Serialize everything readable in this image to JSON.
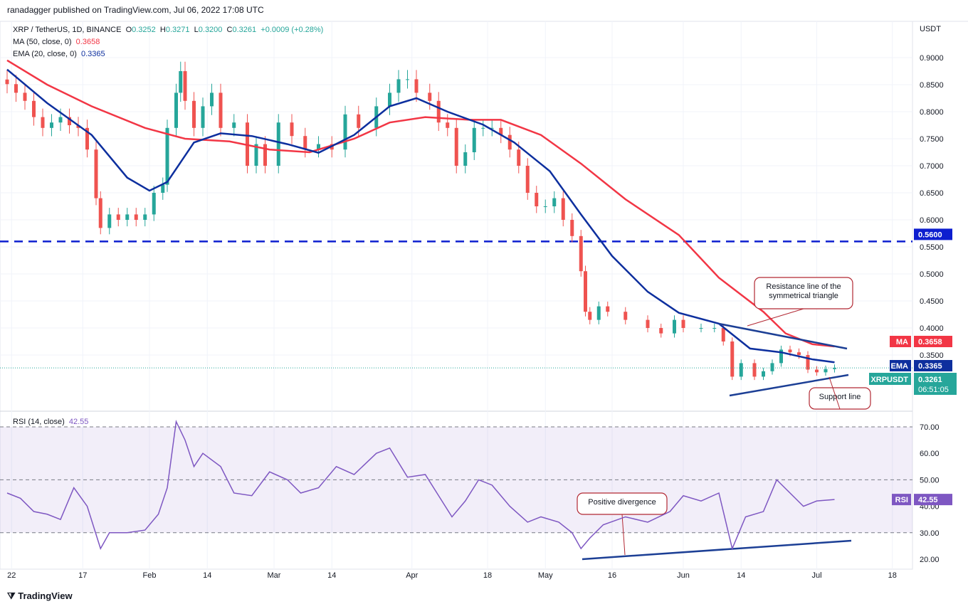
{
  "header": {
    "published": "ranadagger published on TradingView.com, Jul 06, 2022 17:08 UTC"
  },
  "legend": {
    "symbol": "XRP / TetherUS, 1D, BINANCE",
    "o_label": "O",
    "o": "0.3252",
    "h_label": "H",
    "h": "0.3271",
    "l_label": "L",
    "l": "0.3200",
    "c_label": "C",
    "c": "0.3261",
    "change": "+0.0009 (+0.28%)",
    "ma_label": "MA (50, close, 0)",
    "ma": "0.3658",
    "ema_label": "EMA (20, close, 0)",
    "ema": "0.3365",
    "rsi_label": "RSI (14, close)",
    "rsi": "42.55"
  },
  "colors": {
    "up": "#26a69a",
    "down": "#ef5350",
    "ma": "#f23645",
    "ema": "#0d2f9e",
    "rsi": "#7e57c2",
    "level": "#0d1ecf"
  },
  "footer": {
    "logo": "TradingView"
  },
  "chart_data": [
    {
      "type": "candlestick",
      "title": "XRP / TetherUS, 1D",
      "ylabel": "USDT",
      "ylim": [
        0.28,
        0.94
      ],
      "yticks": [
        "0.9000",
        "0.8500",
        "0.8000",
        "0.7500",
        "0.7000",
        "0.6500",
        "0.6000",
        "0.5500",
        "0.5000",
        "0.4500",
        "0.4000",
        "0.3500"
      ],
      "xticks": [
        {
          "d": 1,
          "l": "22"
        },
        {
          "d": 17,
          "l": "17"
        },
        {
          "d": 32,
          "l": "Feb"
        },
        {
          "d": 45,
          "l": "14"
        },
        {
          "d": 60,
          "l": "Mar"
        },
        {
          "d": 73,
          "l": "14"
        },
        {
          "d": 91,
          "l": "Apr"
        },
        {
          "d": 108,
          "l": "18"
        },
        {
          "d": 121,
          "l": "May"
        },
        {
          "d": 136,
          "l": "16"
        },
        {
          "d": 152,
          "l": "Jun"
        },
        {
          "d": 165,
          "l": "14"
        },
        {
          "d": 182,
          "l": "Jul"
        },
        {
          "d": 199,
          "l": "18"
        }
      ],
      "closes_day_value": [
        [
          0,
          0.851
        ],
        [
          2,
          0.835
        ],
        [
          4,
          0.82
        ],
        [
          6,
          0.79
        ],
        [
          8,
          0.77
        ],
        [
          10,
          0.78
        ],
        [
          12,
          0.79
        ],
        [
          14,
          0.775
        ],
        [
          16,
          0.77
        ],
        [
          18,
          0.73
        ],
        [
          20,
          0.64
        ],
        [
          21,
          0.585
        ],
        [
          23,
          0.61
        ],
        [
          25,
          0.6
        ],
        [
          27,
          0.61
        ],
        [
          29,
          0.6
        ],
        [
          31,
          0.61
        ],
        [
          33,
          0.65
        ],
        [
          35,
          0.665
        ],
        [
          36,
          0.77
        ],
        [
          38,
          0.835
        ],
        [
          39,
          0.875
        ],
        [
          40,
          0.82
        ],
        [
          42,
          0.77
        ],
        [
          44,
          0.81
        ],
        [
          46,
          0.835
        ],
        [
          48,
          0.77
        ],
        [
          51,
          0.78
        ],
        [
          54,
          0.7
        ],
        [
          56,
          0.74
        ],
        [
          58,
          0.7
        ],
        [
          61,
          0.78
        ],
        [
          64,
          0.755
        ],
        [
          67,
          0.73
        ],
        [
          70,
          0.74
        ],
        [
          73,
          0.73
        ],
        [
          76,
          0.795
        ],
        [
          79,
          0.77
        ],
        [
          83,
          0.81
        ],
        [
          86,
          0.835
        ],
        [
          88,
          0.86
        ],
        [
          90,
          0.86
        ],
        [
          92,
          0.835
        ],
        [
          95,
          0.82
        ],
        [
          97,
          0.78
        ],
        [
          99,
          0.77
        ],
        [
          101,
          0.7
        ],
        [
          103,
          0.725
        ],
        [
          105,
          0.77
        ],
        [
          107,
          0.77
        ],
        [
          109,
          0.77
        ],
        [
          111,
          0.757
        ],
        [
          113,
          0.73
        ],
        [
          115,
          0.7
        ],
        [
          117,
          0.65
        ],
        [
          119,
          0.625
        ],
        [
          121,
          0.625
        ],
        [
          123,
          0.64
        ],
        [
          125,
          0.6
        ],
        [
          127,
          0.57
        ],
        [
          129,
          0.505
        ],
        [
          130,
          0.43
        ],
        [
          131,
          0.415
        ],
        [
          133,
          0.44
        ],
        [
          135,
          0.43
        ],
        [
          139,
          0.415
        ],
        [
          144,
          0.4
        ],
        [
          147,
          0.39
        ],
        [
          150,
          0.415
        ],
        [
          152,
          0.4
        ],
        [
          156,
          0.4
        ],
        [
          159,
          0.4
        ],
        [
          161,
          0.375
        ],
        [
          163,
          0.31
        ],
        [
          165,
          0.335
        ],
        [
          168,
          0.31
        ],
        [
          170,
          0.32
        ],
        [
          172,
          0.335
        ],
        [
          174,
          0.36
        ],
        [
          176,
          0.355
        ],
        [
          178,
          0.35
        ],
        [
          180,
          0.323
        ],
        [
          182,
          0.318
        ],
        [
          184,
          0.324
        ],
        [
          186,
          0.3261
        ]
      ],
      "series": [
        {
          "name": "MA (50)",
          "points": [
            [
              0,
              0.895
            ],
            [
              9,
              0.85
            ],
            [
              19,
              0.81
            ],
            [
              31,
              0.77
            ],
            [
              40,
              0.75
            ],
            [
              50,
              0.745
            ],
            [
              59,
              0.73
            ],
            [
              68,
              0.725
            ],
            [
              78,
              0.75
            ],
            [
              86,
              0.78
            ],
            [
              94,
              0.79
            ],
            [
              104,
              0.785
            ],
            [
              111,
              0.785
            ],
            [
              120,
              0.757
            ],
            [
              129,
              0.704
            ],
            [
              139,
              0.638
            ],
            [
              151,
              0.572
            ],
            [
              160,
              0.493
            ],
            [
              170,
              0.43
            ],
            [
              175,
              0.39
            ],
            [
              181,
              0.37
            ],
            [
              186,
              0.3658
            ]
          ]
        },
        {
          "name": "EMA (20)",
          "points": [
            [
              0,
              0.878
            ],
            [
              9,
              0.816
            ],
            [
              19,
              0.757
            ],
            [
              27,
              0.678
            ],
            [
              32,
              0.654
            ],
            [
              36,
              0.67
            ],
            [
              42,
              0.743
            ],
            [
              48,
              0.76
            ],
            [
              55,
              0.755
            ],
            [
              63,
              0.74
            ],
            [
              70,
              0.724
            ],
            [
              78,
              0.757
            ],
            [
              86,
              0.81
            ],
            [
              92,
              0.825
            ],
            [
              99,
              0.8
            ],
            [
              107,
              0.776
            ],
            [
              114,
              0.743
            ],
            [
              122,
              0.69
            ],
            [
              129,
              0.61
            ],
            [
              136,
              0.533
            ],
            [
              144,
              0.467
            ],
            [
              151,
              0.428
            ],
            [
              160,
              0.408
            ],
            [
              167,
              0.362
            ],
            [
              174,
              0.355
            ],
            [
              181,
              0.342
            ],
            [
              186,
              0.3365
            ]
          ]
        }
      ],
      "level": {
        "value": 0.56,
        "label": "0.5600"
      },
      "price_labels": [
        {
          "name": "MA",
          "value": "0.3658"
        },
        {
          "name": "EMA",
          "value": "0.3365"
        },
        {
          "name": "XRPUSDT",
          "value": "0.3261",
          "countdown": "06:51:05"
        }
      ],
      "annotations": [
        "Resistance line of the symmetrical triangle",
        "Support line"
      ]
    },
    {
      "type": "line",
      "title": "RSI (14, close)",
      "ylim": [
        18,
        74
      ],
      "yticks": [
        "70.00",
        "60.00",
        "50.00",
        "40.00",
        "30.00",
        "20.00"
      ],
      "band": [
        30,
        70
      ],
      "points": [
        [
          0,
          45
        ],
        [
          3,
          43
        ],
        [
          6,
          38
        ],
        [
          9,
          37
        ],
        [
          12,
          35
        ],
        [
          15,
          47
        ],
        [
          18,
          40
        ],
        [
          21,
          24
        ],
        [
          23,
          30
        ],
        [
          27,
          30
        ],
        [
          31,
          31
        ],
        [
          34,
          37
        ],
        [
          36,
          47
        ],
        [
          38,
          72
        ],
        [
          40,
          65
        ],
        [
          42,
          55
        ],
        [
          44,
          60
        ],
        [
          48,
          55
        ],
        [
          51,
          45
        ],
        [
          55,
          44
        ],
        [
          59,
          53
        ],
        [
          63,
          50
        ],
        [
          66,
          45
        ],
        [
          70,
          47
        ],
        [
          74,
          55
        ],
        [
          78,
          52
        ],
        [
          83,
          60
        ],
        [
          86,
          62
        ],
        [
          90,
          51
        ],
        [
          94,
          52
        ],
        [
          97,
          44
        ],
        [
          100,
          36
        ],
        [
          103,
          42
        ],
        [
          106,
          50
        ],
        [
          109,
          48
        ],
        [
          113,
          40
        ],
        [
          117,
          34
        ],
        [
          120,
          36
        ],
        [
          124,
          34
        ],
        [
          127,
          30
        ],
        [
          129,
          24
        ],
        [
          131,
          28
        ],
        [
          134,
          33
        ],
        [
          139,
          36
        ],
        [
          144,
          34
        ],
        [
          149,
          38
        ],
        [
          152,
          44
        ],
        [
          156,
          42
        ],
        [
          160,
          45
        ],
        [
          163,
          24
        ],
        [
          166,
          36
        ],
        [
          170,
          38
        ],
        [
          173,
          50
        ],
        [
          176,
          45
        ],
        [
          179,
          40
        ],
        [
          182,
          42
        ],
        [
          186,
          42.55
        ]
      ],
      "label": "RSI",
      "value": "42.55",
      "annotation": "Positive divergence"
    }
  ]
}
